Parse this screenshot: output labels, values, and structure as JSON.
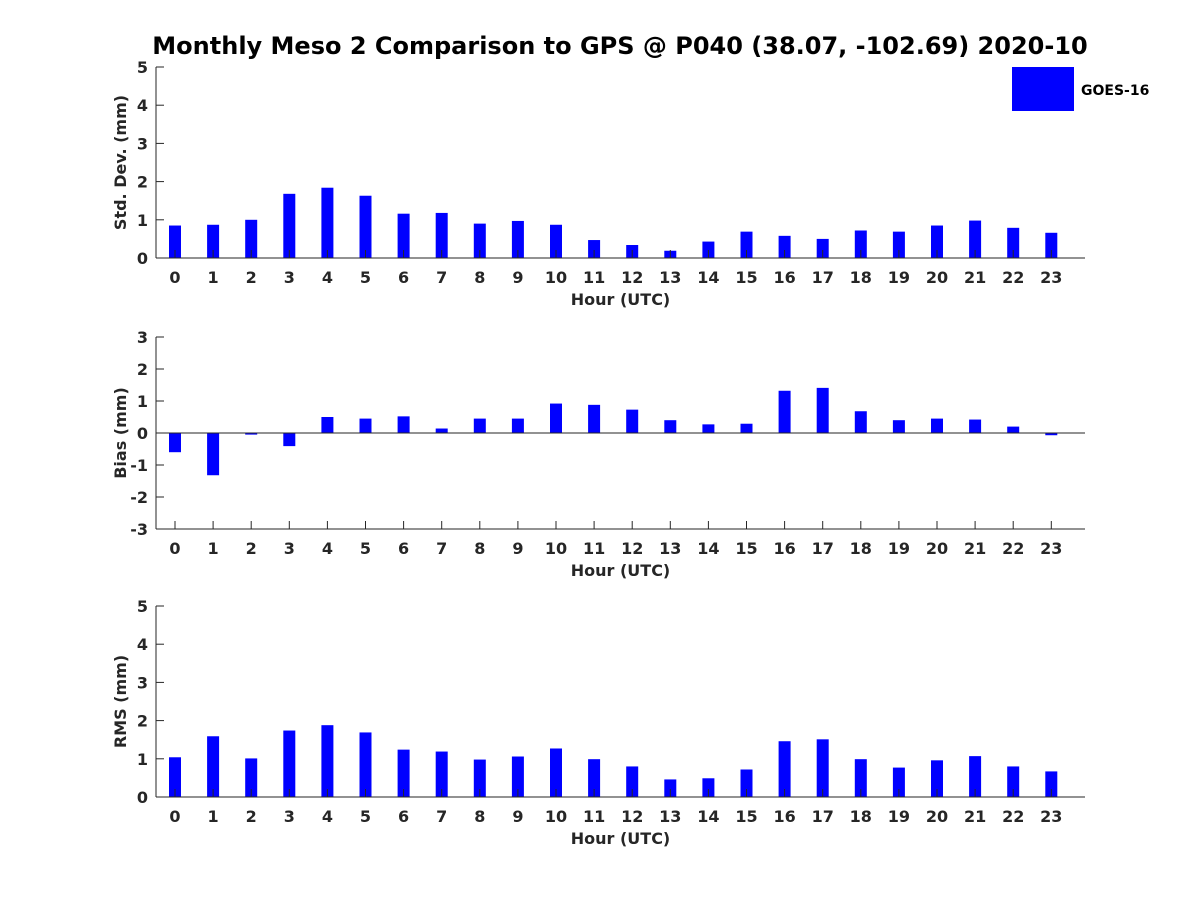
{
  "figure": {
    "title": "Monthly Meso 2 Comparison to GPS @ P040 (38.07, -102.69) 2020-10",
    "legend_label": "GOES-16",
    "bar_color": "#0000ff"
  },
  "chart_data": [
    {
      "type": "bar",
      "xlabel": "Hour (UTC)",
      "ylabel": "Std. Dev. (mm)",
      "ylim": [
        0,
        5
      ],
      "yticks": [
        0,
        1,
        2,
        3,
        4,
        5
      ],
      "categories": [
        "0",
        "1",
        "2",
        "3",
        "4",
        "5",
        "6",
        "7",
        "8",
        "9",
        "10",
        "11",
        "12",
        "13",
        "14",
        "15",
        "16",
        "17",
        "18",
        "19",
        "20",
        "21",
        "22",
        "23"
      ],
      "series": [
        {
          "name": "GOES-16",
          "values": [
            0.85,
            0.87,
            1.0,
            1.68,
            1.84,
            1.63,
            1.16,
            1.18,
            0.9,
            0.97,
            0.87,
            0.47,
            0.34,
            0.19,
            0.43,
            0.69,
            0.58,
            0.5,
            0.72,
            0.69,
            0.85,
            0.98,
            0.79,
            0.66
          ]
        }
      ]
    },
    {
      "type": "bar",
      "xlabel": "Hour (UTC)",
      "ylabel": "Bias (mm)",
      "ylim": [
        -3,
        3
      ],
      "yticks": [
        -3,
        -2,
        -1,
        0,
        1,
        2,
        3
      ],
      "categories": [
        "0",
        "1",
        "2",
        "3",
        "4",
        "5",
        "6",
        "7",
        "8",
        "9",
        "10",
        "11",
        "12",
        "13",
        "14",
        "15",
        "16",
        "17",
        "18",
        "19",
        "20",
        "21",
        "22",
        "23"
      ],
      "series": [
        {
          "name": "GOES-16",
          "values": [
            -0.6,
            -1.32,
            -0.05,
            -0.41,
            0.5,
            0.45,
            0.52,
            0.14,
            0.45,
            0.45,
            0.92,
            0.88,
            0.73,
            0.4,
            0.27,
            0.29,
            1.32,
            1.41,
            0.68,
            0.4,
            0.45,
            0.42,
            0.2,
            -0.07
          ]
        }
      ]
    },
    {
      "type": "bar",
      "xlabel": "Hour (UTC)",
      "ylabel": "RMS (mm)",
      "ylim": [
        0,
        5
      ],
      "yticks": [
        0,
        1,
        2,
        3,
        4,
        5
      ],
      "categories": [
        "0",
        "1",
        "2",
        "3",
        "4",
        "5",
        "6",
        "7",
        "8",
        "9",
        "10",
        "11",
        "12",
        "13",
        "14",
        "15",
        "16",
        "17",
        "18",
        "19",
        "20",
        "21",
        "22",
        "23"
      ],
      "series": [
        {
          "name": "GOES-16",
          "values": [
            1.04,
            1.59,
            1.01,
            1.74,
            1.88,
            1.69,
            1.24,
            1.19,
            0.98,
            1.06,
            1.27,
            0.99,
            0.8,
            0.46,
            0.49,
            0.72,
            1.46,
            1.51,
            0.99,
            0.77,
            0.96,
            1.07,
            0.8,
            0.67
          ]
        }
      ]
    }
  ]
}
